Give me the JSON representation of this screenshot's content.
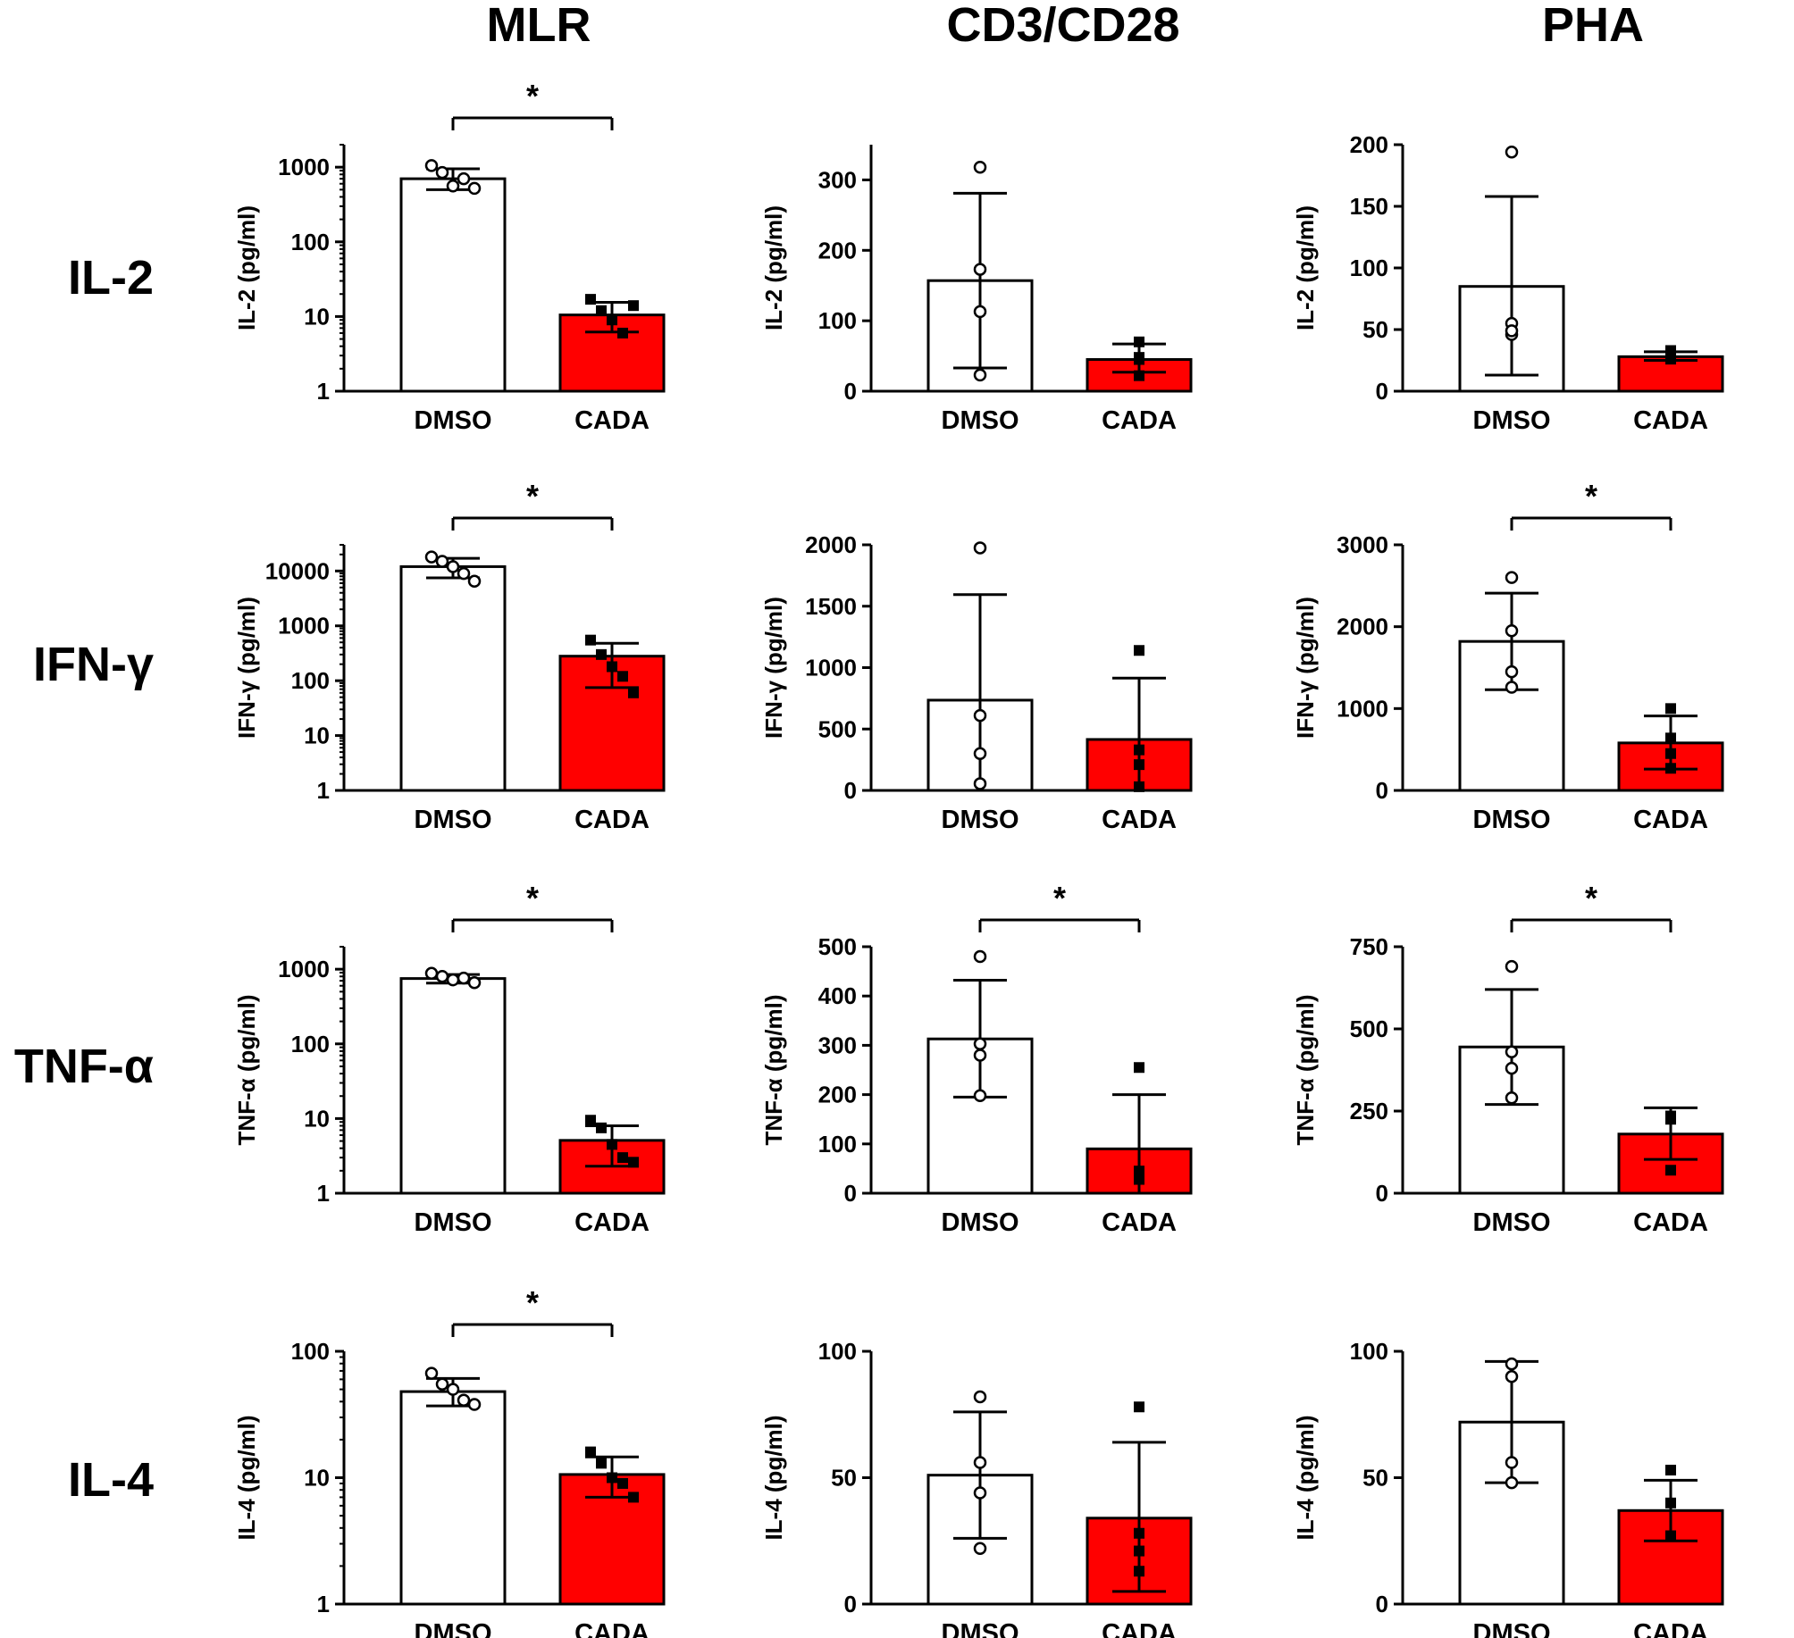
{
  "column_titles": [
    "MLR",
    "CD3/CD28",
    "PHA"
  ],
  "row_titles": [
    "IL-2",
    "IFN-γ",
    "TNF-α",
    "IL-4"
  ],
  "colors": {
    "dmso_fill": "#ffffff",
    "cada_fill": "#ff0000",
    "stroke": "#000000"
  },
  "chart_data": [
    {
      "id": "il2-mlr",
      "type": "bar",
      "scale": "log",
      "ylim": [
        1,
        2000
      ],
      "yticks": [
        1,
        10,
        100,
        1000
      ],
      "tick_labels": [
        "1",
        "10",
        "100",
        "1000"
      ],
      "ylabel": "IL-2 (pg/ml)",
      "categories": [
        "DMSO",
        "CADA"
      ],
      "significance": "*",
      "series": [
        {
          "name": "DMSO",
          "mean": 700,
          "err_low": 500,
          "err_high": 950,
          "points": [
            1050,
            850,
            560,
            700,
            520
          ]
        },
        {
          "name": "CADA",
          "mean": 10.5,
          "err_low": 6.2,
          "err_high": 15.5,
          "points": [
            17,
            12,
            9,
            6,
            14
          ]
        }
      ]
    },
    {
      "id": "il2-cd3",
      "type": "bar",
      "scale": "linear",
      "ylim": [
        0,
        350
      ],
      "yticks": [
        0,
        100,
        200,
        300
      ],
      "tick_labels": [
        "0",
        "100",
        "200",
        "300"
      ],
      "ylabel": "IL-2 (pg/ml)",
      "categories": [
        "DMSO",
        "CADA"
      ],
      "significance": "",
      "series": [
        {
          "name": "DMSO",
          "mean": 157,
          "err_low": 33,
          "err_high": 281,
          "points": [
            318,
            173,
            113,
            23
          ]
        },
        {
          "name": "CADA",
          "mean": 45,
          "err_low": 27,
          "err_high": 67,
          "points": [
            70,
            48,
            45,
            22
          ]
        }
      ]
    },
    {
      "id": "il2-pha",
      "type": "bar",
      "scale": "linear",
      "ylim": [
        0,
        200
      ],
      "yticks": [
        0,
        50,
        100,
        150,
        200
      ],
      "tick_labels": [
        "0",
        "50",
        "100",
        "150",
        "200"
      ],
      "ylabel": "IL-2 (pg/ml)",
      "categories": [
        "DMSO",
        "CADA"
      ],
      "significance": "",
      "series": [
        {
          "name": "DMSO",
          "mean": 85,
          "err_low": 13,
          "err_high": 158,
          "points": [
            194,
            55,
            46,
            49
          ]
        },
        {
          "name": "CADA",
          "mean": 28,
          "err_low": 25,
          "err_high": 32,
          "points": [
            33,
            28,
            26,
            27
          ]
        }
      ]
    },
    {
      "id": "ifng-mlr",
      "type": "bar",
      "scale": "log",
      "ylim": [
        1,
        30000
      ],
      "yticks": [
        1,
        10,
        100,
        1000,
        10000
      ],
      "tick_labels": [
        "1",
        "10",
        "100",
        "1000",
        "10000"
      ],
      "ylabel": "IFN-γ (pg/ml)",
      "categories": [
        "DMSO",
        "CADA"
      ],
      "significance": "*",
      "series": [
        {
          "name": "DMSO",
          "mean": 12000,
          "err_low": 7500,
          "err_high": 17000,
          "points": [
            18000,
            15000,
            12000,
            9000,
            6500
          ]
        },
        {
          "name": "CADA",
          "mean": 280,
          "err_low": 75,
          "err_high": 480,
          "points": [
            550,
            300,
            180,
            120,
            60
          ]
        }
      ]
    },
    {
      "id": "ifng-cd3",
      "type": "bar",
      "scale": "linear",
      "ylim": [
        0,
        2000
      ],
      "yticks": [
        0,
        500,
        1000,
        1500,
        2000
      ],
      "tick_labels": [
        "0",
        "500",
        "1000",
        "1500",
        "2000"
      ],
      "ylabel": "IFN-γ (pg/ml)",
      "categories": [
        "DMSO",
        "CADA"
      ],
      "significance": "",
      "series": [
        {
          "name": "DMSO",
          "mean": 735,
          "err_low": 0,
          "err_high": 1595,
          "points": [
            1975,
            610,
            300,
            55
          ]
        },
        {
          "name": "CADA",
          "mean": 415,
          "err_low": 0,
          "err_high": 915,
          "points": [
            1140,
            330,
            210,
            30
          ]
        }
      ]
    },
    {
      "id": "ifng-pha",
      "type": "bar",
      "scale": "linear",
      "ylim": [
        0,
        3000
      ],
      "yticks": [
        0,
        1000,
        2000,
        3000
      ],
      "tick_labels": [
        "0",
        "1000",
        "2000",
        "3000"
      ],
      "ylabel": "IFN-γ (pg/ml)",
      "categories": [
        "DMSO",
        "CADA"
      ],
      "significance": "*",
      "series": [
        {
          "name": "DMSO",
          "mean": 1820,
          "err_low": 1230,
          "err_high": 2410,
          "points": [
            2600,
            1950,
            1450,
            1260
          ]
        },
        {
          "name": "CADA",
          "mean": 580,
          "err_low": 260,
          "err_high": 910,
          "points": [
            1000,
            640,
            450,
            270
          ]
        }
      ]
    },
    {
      "id": "tnfa-mlr",
      "type": "bar",
      "scale": "log",
      "ylim": [
        1,
        2000
      ],
      "yticks": [
        1,
        10,
        100,
        1000
      ],
      "tick_labels": [
        "1",
        "10",
        "100",
        "1000"
      ],
      "ylabel": "TNF-α (pg/ml)",
      "categories": [
        "DMSO",
        "CADA"
      ],
      "significance": "*",
      "series": [
        {
          "name": "DMSO",
          "mean": 750,
          "err_low": 650,
          "err_high": 850,
          "points": [
            880,
            800,
            720,
            760,
            660
          ]
        },
        {
          "name": "CADA",
          "mean": 5.1,
          "err_low": 2.3,
          "err_high": 8.0,
          "points": [
            9.5,
            7.5,
            4.5,
            3.0,
            2.6
          ]
        }
      ]
    },
    {
      "id": "tnfa-cd3",
      "type": "bar",
      "scale": "linear",
      "ylim": [
        0,
        500
      ],
      "yticks": [
        0,
        100,
        200,
        300,
        400,
        500
      ],
      "tick_labels": [
        "0",
        "100",
        "200",
        "300",
        "400",
        "500"
      ],
      "ylabel": "TNF-α (pg/ml)",
      "categories": [
        "DMSO",
        "CADA"
      ],
      "significance": "*",
      "series": [
        {
          "name": "DMSO",
          "mean": 313,
          "err_low": 195,
          "err_high": 432,
          "points": [
            480,
            303,
            280,
            198
          ]
        },
        {
          "name": "CADA",
          "mean": 90,
          "err_low": 0,
          "err_high": 200,
          "points": [
            255,
            45,
            40,
            28
          ]
        }
      ]
    },
    {
      "id": "tnfa-pha",
      "type": "bar",
      "scale": "linear",
      "ylim": [
        0,
        750
      ],
      "yticks": [
        0,
        250,
        500,
        750
      ],
      "tick_labels": [
        "0",
        "250",
        "500",
        "750"
      ],
      "ylabel": "TNF-α (pg/ml)",
      "categories": [
        "DMSO",
        "CADA"
      ],
      "significance": "*",
      "series": [
        {
          "name": "DMSO",
          "mean": 445,
          "err_low": 270,
          "err_high": 620,
          "points": [
            690,
            430,
            380,
            290
          ]
        },
        {
          "name": "CADA",
          "mean": 180,
          "err_low": 103,
          "err_high": 260,
          "points": [
            235,
            228,
            225,
            70
          ]
        }
      ]
    },
    {
      "id": "il4-mlr",
      "type": "bar",
      "scale": "log",
      "ylim": [
        1,
        100
      ],
      "yticks": [
        1,
        10,
        100
      ],
      "tick_labels": [
        "1",
        "10",
        "100"
      ],
      "ylabel": "IL-4 (pg/ml)",
      "categories": [
        "DMSO",
        "CADA"
      ],
      "significance": "*",
      "series": [
        {
          "name": "DMSO",
          "mean": 48,
          "err_low": 37,
          "err_high": 61,
          "points": [
            67,
            55,
            50,
            41,
            38
          ]
        },
        {
          "name": "CADA",
          "mean": 10.6,
          "err_low": 7.0,
          "err_high": 14.6,
          "points": [
            16,
            13,
            10,
            9,
            7
          ]
        }
      ]
    },
    {
      "id": "il4-cd3",
      "type": "bar",
      "scale": "linear",
      "ylim": [
        0,
        100
      ],
      "yticks": [
        0,
        50,
        100
      ],
      "tick_labels": [
        "0",
        "50",
        "100"
      ],
      "ylabel": "IL-4 (pg/ml)",
      "categories": [
        "DMSO",
        "CADA"
      ],
      "significance": "",
      "series": [
        {
          "name": "DMSO",
          "mean": 51,
          "err_low": 26,
          "err_high": 76,
          "points": [
            82,
            56,
            44,
            22
          ]
        },
        {
          "name": "CADA",
          "mean": 34,
          "err_low": 5,
          "err_high": 64,
          "points": [
            78,
            28,
            21,
            13
          ]
        }
      ]
    },
    {
      "id": "il4-pha",
      "type": "bar",
      "scale": "linear",
      "ylim": [
        0,
        100
      ],
      "yticks": [
        0,
        50,
        100
      ],
      "tick_labels": [
        "0",
        "50",
        "100"
      ],
      "ylabel": "IL-4 (pg/ml)",
      "categories": [
        "DMSO",
        "CADA"
      ],
      "significance": "",
      "series": [
        {
          "name": "DMSO",
          "mean": 72,
          "err_low": 48,
          "err_high": 96,
          "points": [
            95,
            90,
            56,
            48
          ]
        },
        {
          "name": "CADA",
          "mean": 37,
          "err_low": 25,
          "err_high": 49,
          "points": [
            53,
            40,
            27,
            27
          ]
        }
      ]
    }
  ]
}
